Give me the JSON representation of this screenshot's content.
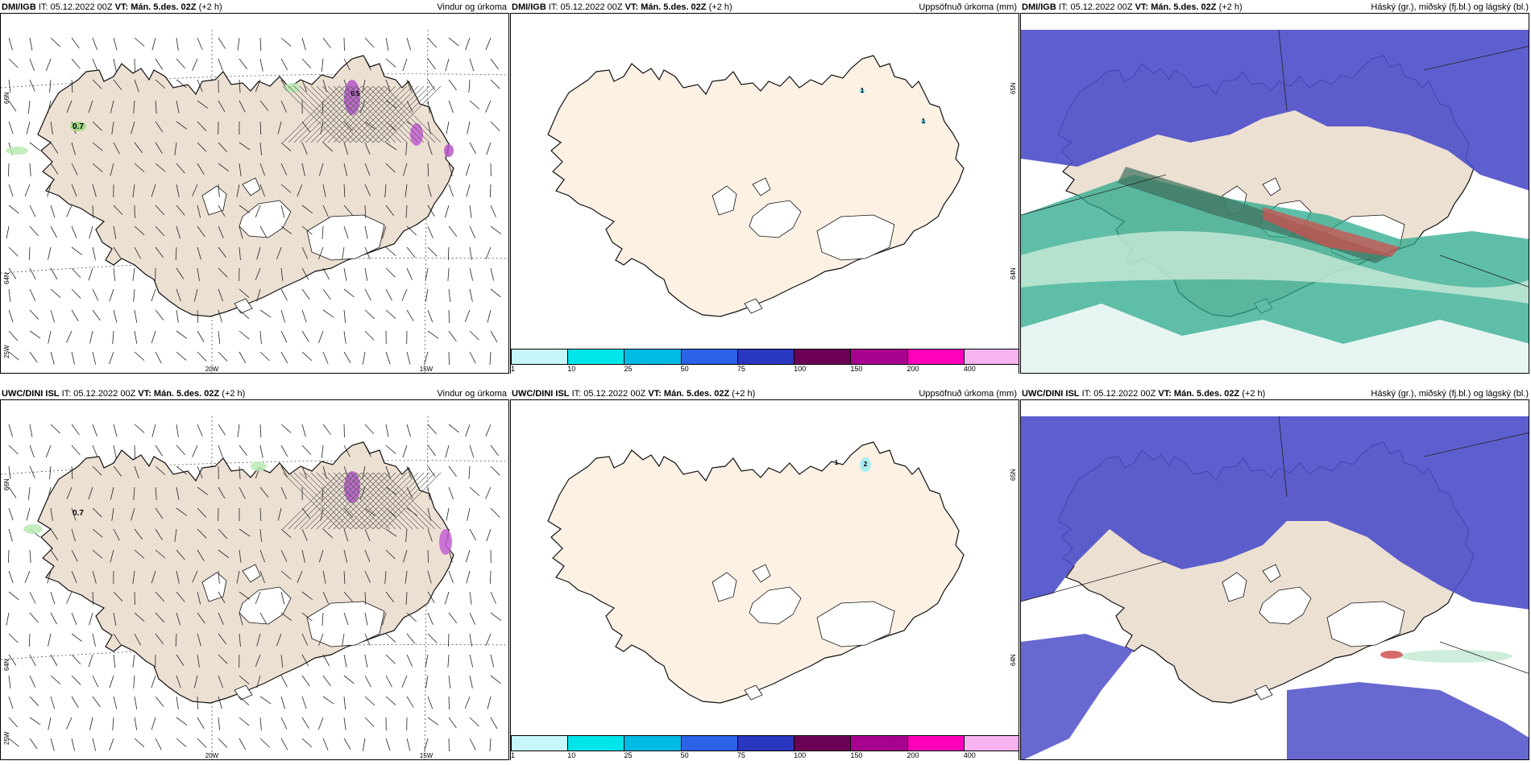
{
  "rows": [
    {
      "model": "DMI/IGB",
      "panels": [
        {
          "it": "IT: 05.12.2022 00Z",
          "vt": "VT: Mán. 5.des. 02Z",
          "lead": "(+2 h)",
          "title": "Vindur og úrkoma",
          "annot": [
            "0.7",
            "0.5"
          ]
        },
        {
          "it": "IT: 05.12.2022 00Z",
          "vt": "VT: Mán. 5.des. 02Z",
          "lead": "(+2 h)",
          "title": "Uppsöfnuð úrkoma (mm)",
          "annot": [
            "1",
            "1"
          ]
        },
        {
          "it": "IT: 05.12.2022 00Z",
          "vt": "VT: Mán. 5.des. 02Z",
          "lead": "(+2 h)",
          "title": "Háský (gr.), miðský (fj.bl.) og lágský (bl.)"
        }
      ]
    },
    {
      "model": "UWC/DINI ISL",
      "panels": [
        {
          "it": "IT: 05.12.2022 00Z",
          "vt": "VT: Mán. 5.des. 02Z",
          "lead": "(+2 h)",
          "title": "Vindur og úrkoma",
          "annot": [
            "0.7"
          ]
        },
        {
          "it": "IT: 05.12.2022 00Z",
          "vt": "VT: Mán. 5.des. 02Z",
          "lead": "(+2 h)",
          "title": "Uppsöfnuð úrkoma (mm)",
          "annot": [
            "1",
            "2"
          ]
        },
        {
          "it": "IT: 05.12.2022 00Z",
          "vt": "VT: Mán. 5.des. 02Z",
          "lead": "(+2 h)",
          "title": "Háský (gr.), miðský (fj.bl.) og lágský (bl.)"
        }
      ]
    }
  ],
  "grid_labels": {
    "lat66": "66N",
    "lat64": "64N",
    "lat65_right": "65N",
    "lon25": "25W",
    "lon20": "20W",
    "lon15": "15W"
  },
  "colorbar": {
    "labels": [
      "1",
      "10",
      "25",
      "50",
      "75",
      "100",
      "150",
      "200",
      "400"
    ],
    "colors": [
      "#c6f6f8",
      "#00e5ea",
      "#00bbe6",
      "#2b62e6",
      "#2a37c0",
      "#6b0055",
      "#a8008f",
      "#ff00bb",
      "#f5b3f0"
    ]
  },
  "colors": {
    "land": "#ece0d2",
    "land_accum": "#fdf1e4",
    "high_cloud": "#4d4ec9",
    "mid_cloud": "#2aa88a",
    "low_cloud": "#c9ebd8",
    "front": "#d05050"
  }
}
